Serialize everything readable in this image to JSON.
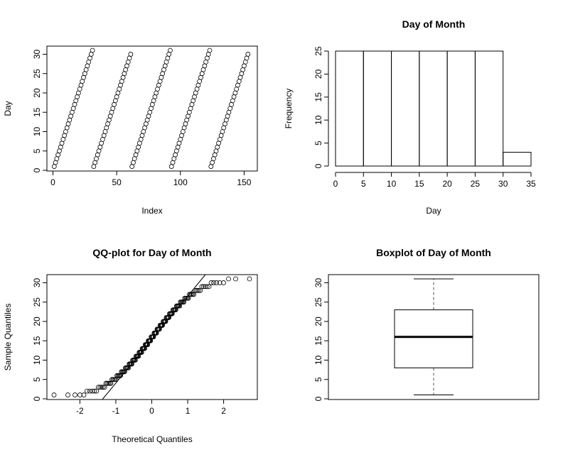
{
  "chart_data": [
    {
      "type": "scatter",
      "title": "",
      "xlabel": "Index",
      "ylabel": "Day",
      "xlim": [
        0,
        153
      ],
      "ylim": [
        0,
        31
      ],
      "xticks": [
        "0",
        "50",
        "100",
        "150"
      ],
      "yticks": [
        "0",
        "5",
        "10",
        "15",
        "20",
        "25",
        "30"
      ],
      "grid": false,
      "legend": "none",
      "series": [
        {
          "values": [
            1,
            2,
            3,
            4,
            5,
            6,
            7,
            8,
            9,
            10,
            11,
            12,
            13,
            14,
            15,
            16,
            17,
            18,
            19,
            20,
            21,
            22,
            23,
            24,
            25,
            26,
            27,
            28,
            29,
            30,
            31,
            1,
            2,
            3,
            4,
            5,
            6,
            7,
            8,
            9,
            10,
            11,
            12,
            13,
            14,
            15,
            16,
            17,
            18,
            19,
            20,
            21,
            22,
            23,
            24,
            25,
            26,
            27,
            28,
            29,
            30,
            1,
            2,
            3,
            4,
            5,
            6,
            7,
            8,
            9,
            10,
            11,
            12,
            13,
            14,
            15,
            16,
            17,
            18,
            19,
            20,
            21,
            22,
            23,
            24,
            25,
            26,
            27,
            28,
            29,
            30,
            31,
            1,
            2,
            3,
            4,
            5,
            6,
            7,
            8,
            9,
            10,
            11,
            12,
            13,
            14,
            15,
            16,
            17,
            18,
            19,
            20,
            21,
            22,
            23,
            24,
            25,
            26,
            27,
            28,
            29,
            30,
            31,
            1,
            2,
            3,
            4,
            5,
            6,
            7,
            8,
            9,
            10,
            11,
            12,
            13,
            14,
            15,
            16,
            17,
            18,
            19,
            20,
            21,
            22,
            23,
            24,
            25,
            26,
            27,
            28,
            29,
            30
          ]
        }
      ]
    },
    {
      "type": "bar",
      "title": "Day of Month",
      "xlabel": "Day",
      "ylabel": "Frequency",
      "bins": [
        [
          0,
          5
        ],
        [
          5,
          10
        ],
        [
          10,
          15
        ],
        [
          15,
          20
        ],
        [
          20,
          25
        ],
        [
          25,
          30
        ],
        [
          30,
          35
        ]
      ],
      "values": [
        25,
        25,
        25,
        25,
        25,
        25,
        3
      ],
      "xlim": [
        0,
        35
      ],
      "ylim": [
        0,
        25
      ],
      "xticks": [
        "0",
        "5",
        "10",
        "15",
        "20",
        "25",
        "30",
        "35"
      ],
      "yticks": [
        "0",
        "5",
        "10",
        "15",
        "20",
        "25"
      ],
      "grid": false,
      "legend": "none"
    },
    {
      "type": "scatter",
      "title": "QQ-plot for Day of Month",
      "xlabel": "Theoretical Quantiles",
      "ylabel": "Sample Quantiles",
      "xlim": [
        -2.72,
        2.72
      ],
      "ylim": [
        0,
        31
      ],
      "xticks": [
        "-2",
        "-1",
        "0",
        "1",
        "2"
      ],
      "yticks": [
        "0",
        "5",
        "10",
        "15",
        "20",
        "25",
        "30"
      ],
      "reference_line": {
        "through_quartiles": [
          8,
          23
        ]
      },
      "grid": false,
      "legend": "none"
    },
    {
      "type": "box",
      "title": "Boxplot of Day of Month",
      "xlabel": "",
      "ylabel": "",
      "ylim": [
        0,
        31
      ],
      "yticks": [
        "0",
        "5",
        "10",
        "15",
        "20",
        "25",
        "30"
      ],
      "stats": {
        "min": 1,
        "q1": 8,
        "median": 16,
        "q3": 23,
        "max": 31
      },
      "grid": false,
      "legend": "none"
    }
  ]
}
